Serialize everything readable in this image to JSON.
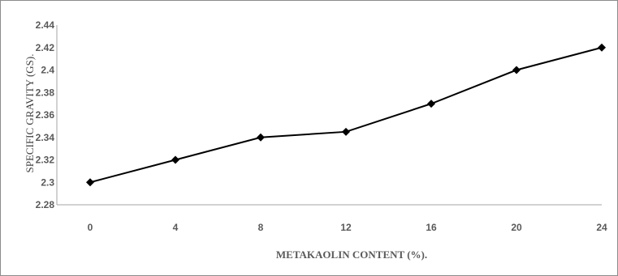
{
  "chart_data": {
    "type": "line",
    "title": "",
    "xlabel": "METAKAOLIN CONTENT (%).",
    "ylabel": "SPECIFIC GRAVITY (GS).",
    "x": [
      0,
      4,
      8,
      12,
      16,
      20,
      24
    ],
    "x_tick_labels": [
      "0",
      "4",
      "8",
      "12",
      "16",
      "20",
      "24"
    ],
    "y_tick_labels": [
      "2.28",
      "2.3",
      "2.32",
      "2.34",
      "2.36",
      "2.38",
      "2.4",
      "2.42",
      "2.44"
    ],
    "ylim": [
      2.28,
      2.44
    ],
    "series": [
      {
        "values": [
          2.3,
          2.32,
          2.34,
          2.345,
          2.37,
          2.4,
          2.42
        ],
        "color": "#000000",
        "marker": "diamond"
      }
    ],
    "grid": false,
    "legend": "none"
  }
}
